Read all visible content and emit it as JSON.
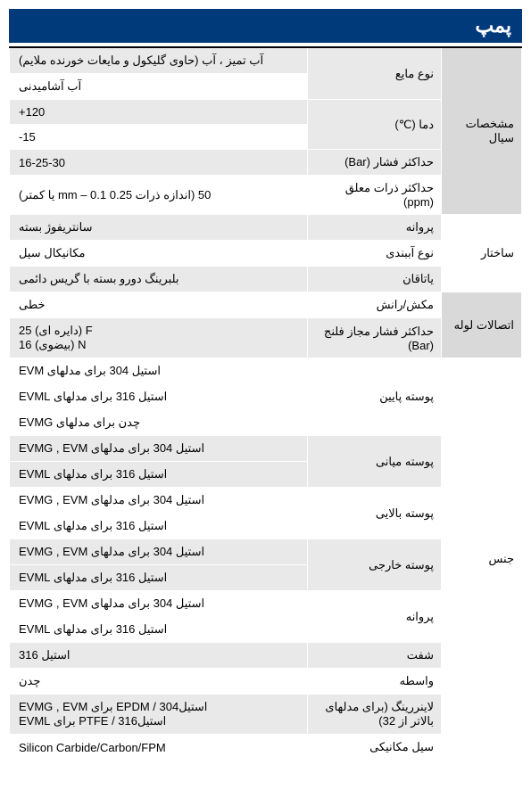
{
  "title": "پمپ",
  "sections": [
    {
      "label": "مشخصات سیال",
      "rows": [
        {
          "sublabel": "نوع مایع",
          "rowspan": 2,
          "values": [
            {
              "text": "آب تمیز ، آب (حاوی گلیکول و مایعات خورنده ملایم)",
              "shade": "g",
              "farsi": true
            },
            {
              "text": "آب آشامیدنی",
              "shade": "w",
              "farsi": true
            }
          ]
        },
        {
          "sublabel": "دما (℃)",
          "rowspan": 2,
          "values": [
            {
              "text": "+120",
              "shade": "g"
            },
            {
              "text": "-15",
              "shade": "w"
            }
          ]
        },
        {
          "sublabel": "حداکثر فشار (Bar)",
          "rowspan": 1,
          "values": [
            {
              "text": "16-25-30",
              "shade": "g"
            }
          ]
        },
        {
          "sublabel": "حداکثر ذرات معلق (ppm)",
          "rowspan": 1,
          "subshade": "w",
          "values": [
            {
              "text": "50 (اندازه ذرات 0.25 mm – 0.1 یا کمتر)",
              "shade": "w",
              "farsi": true
            }
          ]
        }
      ]
    },
    {
      "label": "ساختار",
      "shade": "w",
      "rows": [
        {
          "sublabel": "پروانه",
          "rowspan": 1,
          "values": [
            {
              "text": "سانتریفوژ بسته",
              "shade": "g",
              "farsi": true
            }
          ]
        },
        {
          "sublabel": "نوع آببندی",
          "rowspan": 1,
          "subshade": "w",
          "values": [
            {
              "text": "مکانیکال سیل",
              "shade": "w",
              "farsi": true
            }
          ]
        },
        {
          "sublabel": "یاتاقان",
          "rowspan": 1,
          "values": [
            {
              "text": "بلبرینگ دورو بسته با گریس دائمی",
              "shade": "g",
              "farsi": true
            }
          ]
        }
      ]
    },
    {
      "label": "اتصالات لوله",
      "rows": [
        {
          "sublabel": "مکش/رانش",
          "rowspan": 1,
          "subshade": "w",
          "values": [
            {
              "text": "خطی",
              "shade": "w",
              "farsi": true
            }
          ]
        },
        {
          "sublabel": "حداکثر فشار مجاز فلنج (Bar)",
          "rowspan": 1,
          "values": [
            {
              "text": "F (دایره ای) 25\nN (بیضوی) 16",
              "shade": "g",
              "farsi": true
            }
          ]
        }
      ]
    },
    {
      "label": "جنس",
      "shade": "w",
      "rows": [
        {
          "sublabel": "پوسته پایین",
          "rowspan": 3,
          "subshade": "w",
          "values": [
            {
              "text": "استیل 304 برای مدلهای EVM",
              "shade": "w",
              "farsi": true
            },
            {
              "text": "استیل 316 برای مدلهای EVML",
              "shade": "w",
              "farsi": true
            },
            {
              "text": "چدن برای مدلهای EVMG",
              "shade": "w",
              "farsi": true
            }
          ]
        },
        {
          "sublabel": "پوسته میانی",
          "rowspan": 2,
          "values": [
            {
              "text": "استیل 304 برای مدلهای EVMG , EVM",
              "shade": "g",
              "farsi": true
            },
            {
              "text": "استیل 316 برای مدلهای EVML",
              "shade": "g",
              "farsi": true
            }
          ]
        },
        {
          "sublabel": "پوسته بالایی",
          "rowspan": 2,
          "subshade": "w",
          "values": [
            {
              "text": "استیل 304 برای مدلهای EVMG , EVM",
              "shade": "w",
              "farsi": true
            },
            {
              "text": "استیل 316 برای مدلهای EVML",
              "shade": "w",
              "farsi": true
            }
          ]
        },
        {
          "sublabel": "پوسته خارجی",
          "rowspan": 2,
          "values": [
            {
              "text": "استیل 304 برای مدلهای EVMG , EVM",
              "shade": "g",
              "farsi": true
            },
            {
              "text": "استیل 316 برای مدلهای EVML",
              "shade": "g",
              "farsi": true
            }
          ]
        },
        {
          "sublabel": "پروانه",
          "rowspan": 2,
          "subshade": "w",
          "values": [
            {
              "text": "استیل 304 برای مدلهای EVMG , EVM",
              "shade": "w",
              "farsi": true
            },
            {
              "text": "استیل 316 برای مدلهای EVML",
              "shade": "w",
              "farsi": true
            }
          ]
        },
        {
          "sublabel": "شفت",
          "rowspan": 1,
          "values": [
            {
              "text": "استیل 316",
              "shade": "g",
              "farsi": true
            }
          ]
        },
        {
          "sublabel": "واسطه",
          "rowspan": 1,
          "subshade": "w",
          "values": [
            {
              "text": "چدن",
              "shade": "w",
              "farsi": true
            }
          ]
        },
        {
          "sublabel": "لاینررینگ (برای مدلهای بالاتر از 32)",
          "rowspan": 1,
          "values": [
            {
              "text": "استیل304 / EPDM   برای EVMG , EVM\nاستیل316 / PTFE   برای EVML",
              "shade": "g",
              "farsi": true
            }
          ]
        },
        {
          "sublabel": "سیل مکانیکی",
          "rowspan": 1,
          "subshade": "w",
          "values": [
            {
              "text": "Silicon Carbide/Carbon/FPM",
              "shade": "w"
            }
          ]
        }
      ]
    }
  ]
}
